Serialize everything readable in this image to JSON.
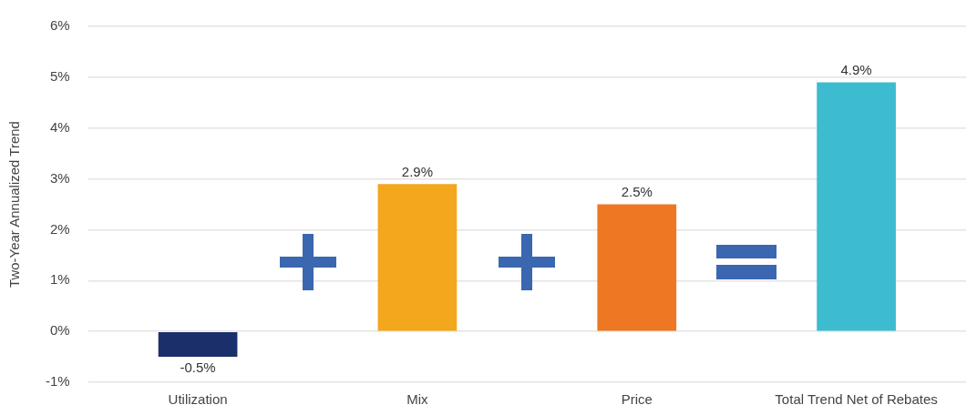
{
  "chart_data": {
    "type": "bar",
    "ylabel": "Two-Year Annualized Trend",
    "categories": [
      "Utilization",
      "Mix",
      "Price",
      "Total Trend Net of Rebates"
    ],
    "values": [
      -0.5,
      2.9,
      2.5,
      4.9
    ],
    "colors": [
      "#1b2f6b",
      "#f2a71c",
      "#ed7722",
      "#3dbcd0"
    ],
    "value_labels": [
      "-0.5%",
      "2.9%",
      "2.5%",
      "4.9%"
    ],
    "ylim": [
      -1,
      6
    ],
    "yticks": [
      {
        "value": -1,
        "label": "-1%"
      },
      {
        "value": 0,
        "label": "0%"
      },
      {
        "value": 1,
        "label": "1%"
      },
      {
        "value": 2,
        "label": "2%"
      },
      {
        "value": 3,
        "label": "3%"
      },
      {
        "value": 4,
        "label": "4%"
      },
      {
        "value": 5,
        "label": "5%"
      },
      {
        "value": 6,
        "label": "6%"
      }
    ],
    "grid": "y",
    "legend": false
  }
}
